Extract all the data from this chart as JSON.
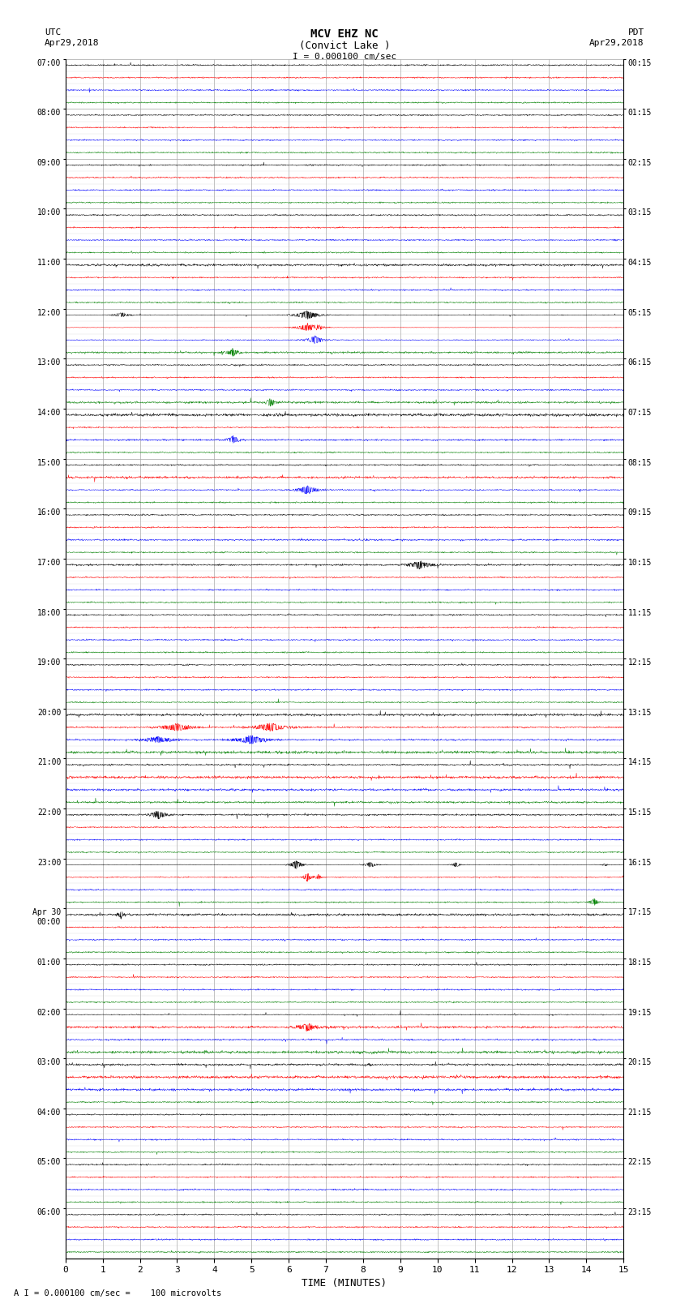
{
  "title_line1": "MCV EHZ NC",
  "title_line2": "(Convict Lake )",
  "scale_label": "I = 0.000100 cm/sec",
  "bottom_label": "A I = 0.000100 cm/sec =    100 microvolts",
  "utc_label": "UTC\nApr29,2018",
  "pdt_label": "PDT\nApr29,2018",
  "xlabel": "TIME (MINUTES)",
  "x_ticks": [
    0,
    1,
    2,
    3,
    4,
    5,
    6,
    7,
    8,
    9,
    10,
    11,
    12,
    13,
    14,
    15
  ],
  "left_yticks_labels": [
    "07:00",
    "08:00",
    "09:00",
    "10:00",
    "11:00",
    "12:00",
    "13:00",
    "14:00",
    "15:00",
    "16:00",
    "17:00",
    "18:00",
    "19:00",
    "20:00",
    "21:00",
    "22:00",
    "23:00",
    "Apr 30\n00:00",
    "01:00",
    "02:00",
    "03:00",
    "04:00",
    "05:00",
    "06:00"
  ],
  "right_yticks_labels": [
    "00:15",
    "01:15",
    "02:15",
    "03:15",
    "04:15",
    "05:15",
    "06:15",
    "07:15",
    "08:15",
    "09:15",
    "10:15",
    "11:15",
    "12:15",
    "13:15",
    "14:15",
    "15:15",
    "16:15",
    "17:15",
    "18:15",
    "19:15",
    "20:15",
    "21:15",
    "22:15",
    "23:15"
  ],
  "n_rows": 24,
  "n_traces_per_row": 4,
  "minutes": 15,
  "bg_color": "#ffffff",
  "grid_color": "#aaaaaa",
  "trace_colors": [
    "black",
    "red",
    "blue",
    "green"
  ],
  "seed": 12345
}
